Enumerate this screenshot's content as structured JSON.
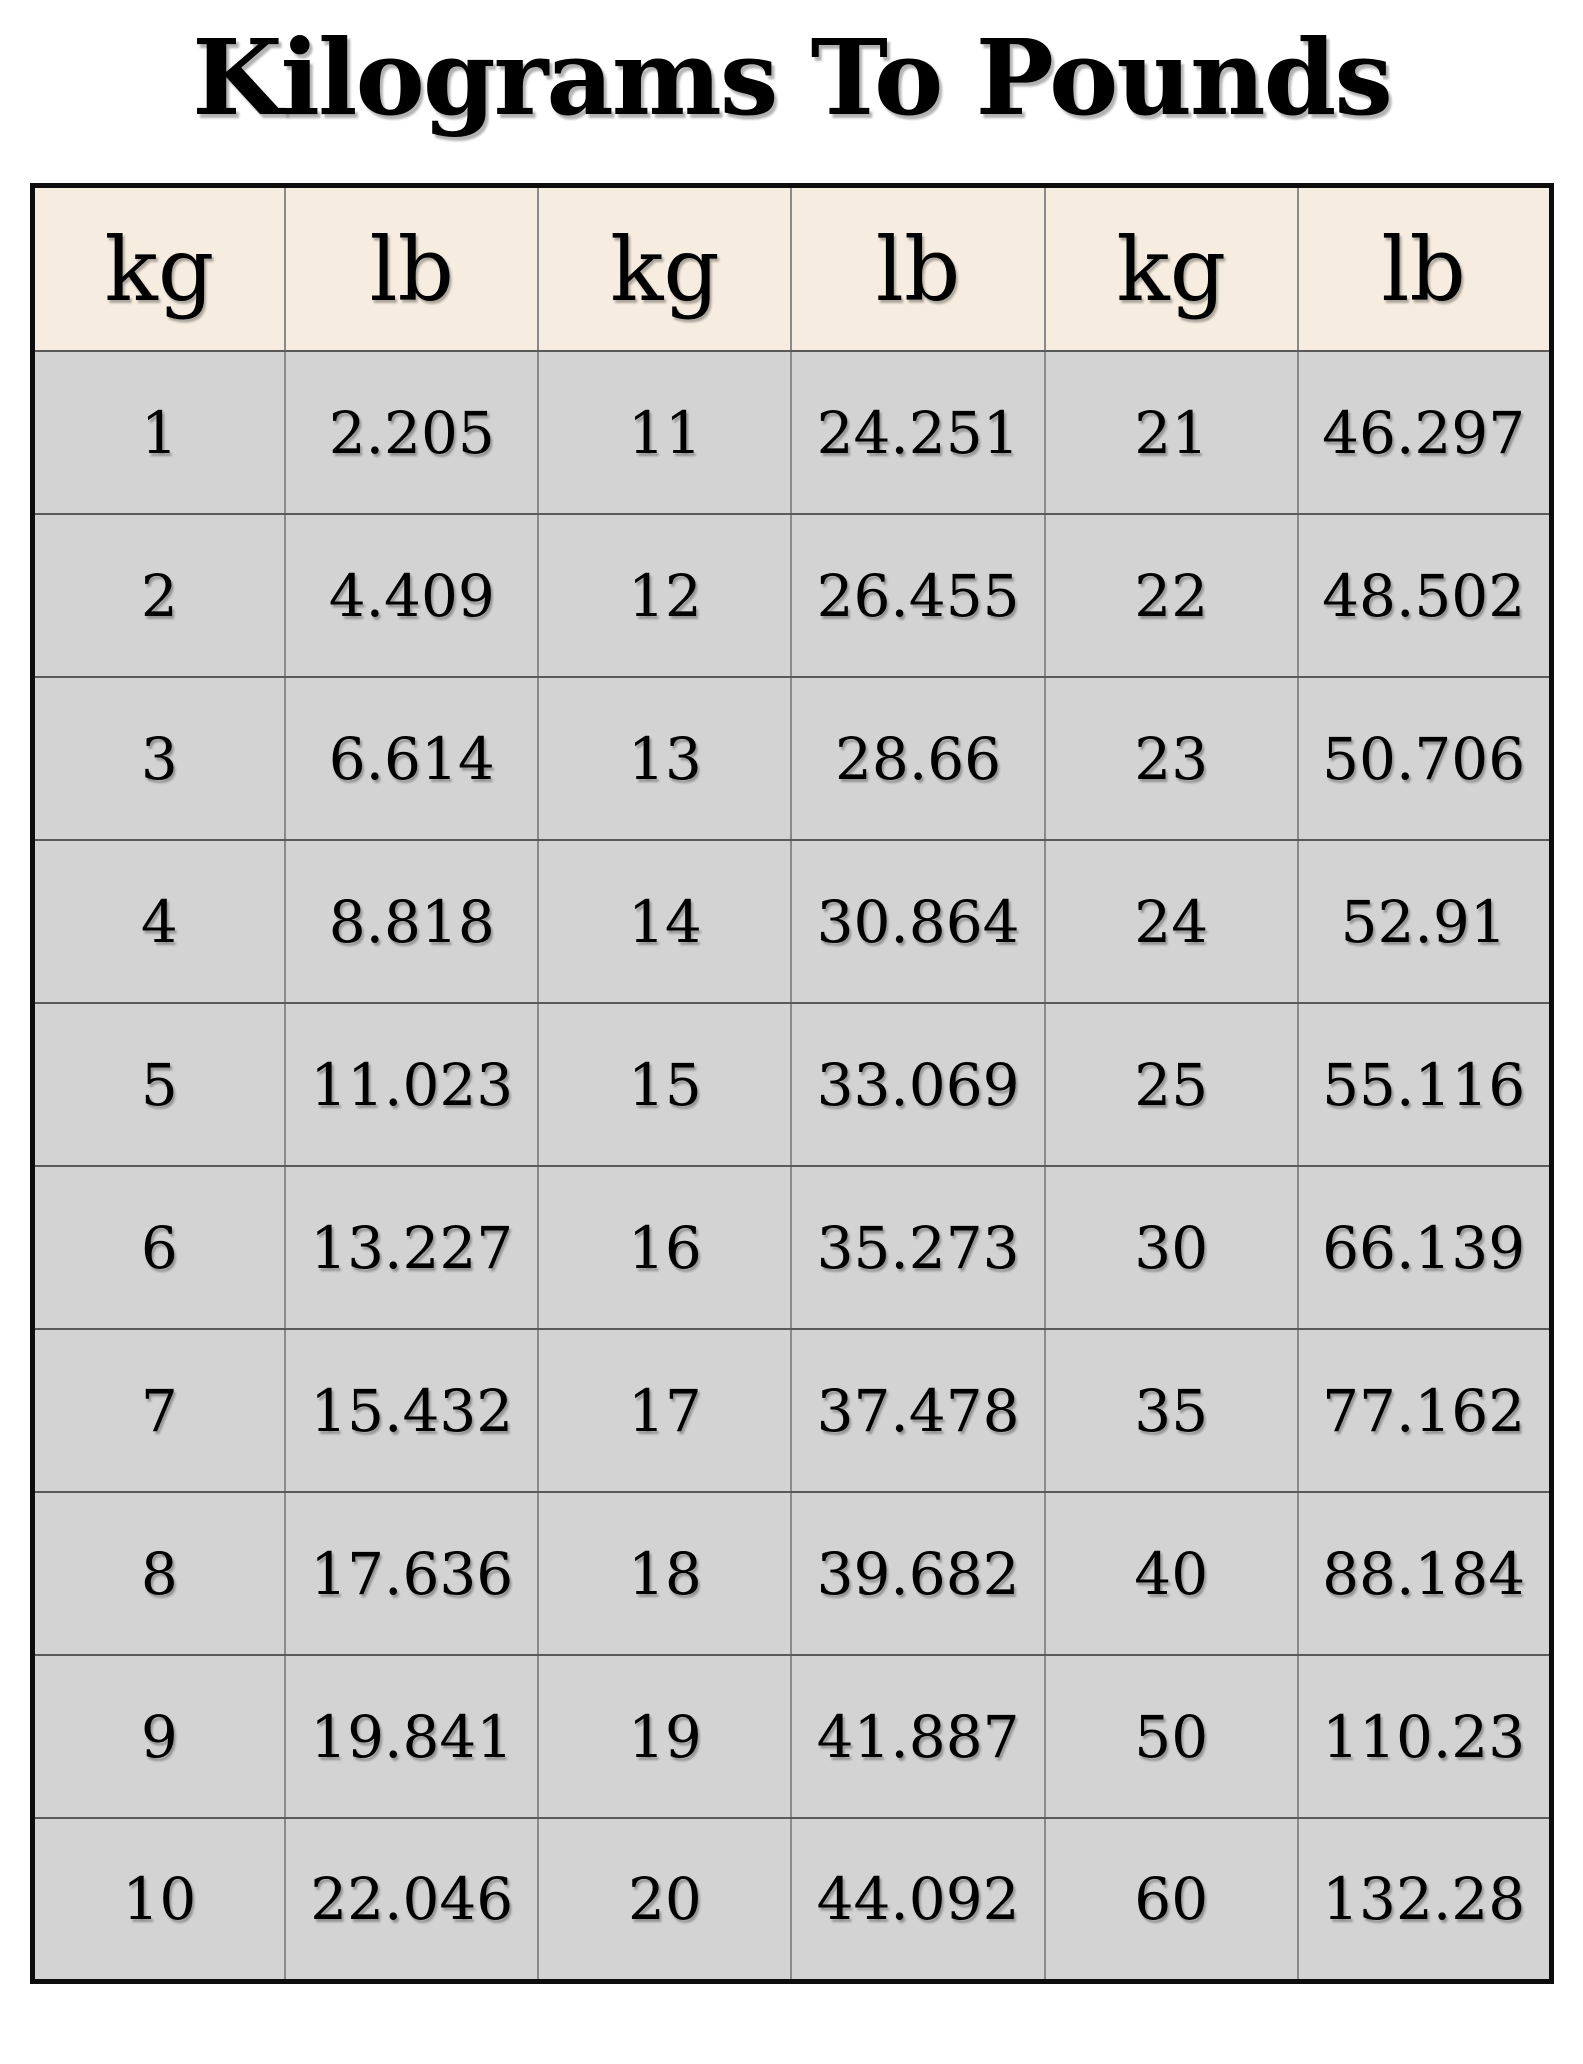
{
  "title": "Kilograms To Pounds",
  "table": {
    "headers": [
      "kg",
      "lb",
      "kg",
      "lb",
      "kg",
      "lb"
    ],
    "rows": [
      [
        "1",
        "2.205",
        "11",
        "24.251",
        "21",
        "46.297"
      ],
      [
        "2",
        "4.409",
        "12",
        "26.455",
        "22",
        "48.502"
      ],
      [
        "3",
        "6.614",
        "13",
        "28.66",
        "23",
        "50.706"
      ],
      [
        "4",
        "8.818",
        "14",
        "30.864",
        "24",
        "52.91"
      ],
      [
        "5",
        "11.023",
        "15",
        "33.069",
        "25",
        "55.116"
      ],
      [
        "6",
        "13.227",
        "16",
        "35.273",
        "30",
        "66.139"
      ],
      [
        "7",
        "15.432",
        "17",
        "37.478",
        "35",
        "77.162"
      ],
      [
        "8",
        "17.636",
        "18",
        "39.682",
        "40",
        "88.184"
      ],
      [
        "9",
        "19.841",
        "19",
        "41.887",
        "50",
        "110.23"
      ],
      [
        "10",
        "22.046",
        "20",
        "44.092",
        "60",
        "132.28"
      ]
    ]
  },
  "colors": {
    "header_bg": "#f6ecdf",
    "row_bg": "#d3d3d3",
    "border_outer": "#0d0d0d",
    "border_inner_v": "#8a8a8a",
    "border_inner_h": "#5a5a5a",
    "text_color": "#000000"
  }
}
